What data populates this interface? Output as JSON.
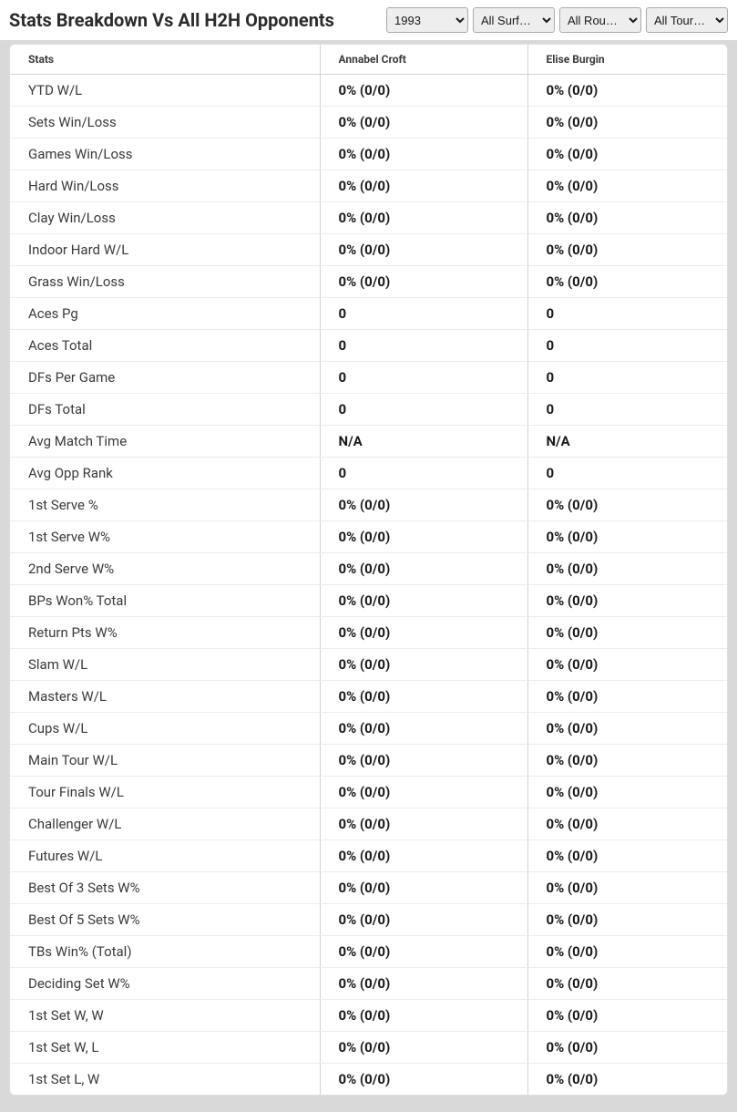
{
  "header": {
    "title": "Stats Breakdown Vs All H2H Opponents",
    "filters": {
      "year": "1993",
      "surface": "All Surf…",
      "round": "All Rou…",
      "tour": "All Tour…"
    }
  },
  "table": {
    "columns": [
      "Stats",
      "Annabel Croft",
      "Elise Burgin"
    ],
    "rows": [
      {
        "label": "YTD W/L",
        "p1": "0% (0/0)",
        "p2": "0% (0/0)"
      },
      {
        "label": "Sets Win/Loss",
        "p1": "0% (0/0)",
        "p2": "0% (0/0)"
      },
      {
        "label": "Games Win/Loss",
        "p1": "0% (0/0)",
        "p2": "0% (0/0)"
      },
      {
        "label": "Hard Win/Loss",
        "p1": "0% (0/0)",
        "p2": "0% (0/0)"
      },
      {
        "label": "Clay Win/Loss",
        "p1": "0% (0/0)",
        "p2": "0% (0/0)"
      },
      {
        "label": "Indoor Hard W/L",
        "p1": "0% (0/0)",
        "p2": "0% (0/0)"
      },
      {
        "label": "Grass Win/Loss",
        "p1": "0% (0/0)",
        "p2": "0% (0/0)"
      },
      {
        "label": "Aces Pg",
        "p1": "0",
        "p2": "0"
      },
      {
        "label": "Aces Total",
        "p1": "0",
        "p2": "0"
      },
      {
        "label": "DFs Per Game",
        "p1": "0",
        "p2": "0"
      },
      {
        "label": "DFs Total",
        "p1": "0",
        "p2": "0"
      },
      {
        "label": "Avg Match Time",
        "p1": "N/A",
        "p2": "N/A"
      },
      {
        "label": "Avg Opp Rank",
        "p1": "0",
        "p2": "0"
      },
      {
        "label": "1st Serve %",
        "p1": "0% (0/0)",
        "p2": "0% (0/0)"
      },
      {
        "label": "1st Serve W%",
        "p1": "0% (0/0)",
        "p2": "0% (0/0)"
      },
      {
        "label": "2nd Serve W%",
        "p1": "0% (0/0)",
        "p2": "0% (0/0)"
      },
      {
        "label": "BPs Won% Total",
        "p1": "0% (0/0)",
        "p2": "0% (0/0)"
      },
      {
        "label": "Return Pts W%",
        "p1": "0% (0/0)",
        "p2": "0% (0/0)"
      },
      {
        "label": "Slam W/L",
        "p1": "0% (0/0)",
        "p2": "0% (0/0)"
      },
      {
        "label": "Masters W/L",
        "p1": "0% (0/0)",
        "p2": "0% (0/0)"
      },
      {
        "label": "Cups W/L",
        "p1": "0% (0/0)",
        "p2": "0% (0/0)"
      },
      {
        "label": "Main Tour W/L",
        "p1": "0% (0/0)",
        "p2": "0% (0/0)"
      },
      {
        "label": "Tour Finals W/L",
        "p1": "0% (0/0)",
        "p2": "0% (0/0)"
      },
      {
        "label": "Challenger W/L",
        "p1": "0% (0/0)",
        "p2": "0% (0/0)"
      },
      {
        "label": "Futures W/L",
        "p1": "0% (0/0)",
        "p2": "0% (0/0)"
      },
      {
        "label": "Best Of 3 Sets W%",
        "p1": "0% (0/0)",
        "p2": "0% (0/0)"
      },
      {
        "label": "Best Of 5 Sets W%",
        "p1": "0% (0/0)",
        "p2": "0% (0/0)"
      },
      {
        "label": "TBs Win% (Total)",
        "p1": "0% (0/0)",
        "p2": "0% (0/0)"
      },
      {
        "label": "Deciding Set W%",
        "p1": "0% (0/0)",
        "p2": "0% (0/0)"
      },
      {
        "label": "1st Set W, W",
        "p1": "0% (0/0)",
        "p2": "0% (0/0)"
      },
      {
        "label": "1st Set W, L",
        "p1": "0% (0/0)",
        "p2": "0% (0/0)"
      },
      {
        "label": "1st Set L, W",
        "p1": "0% (0/0)",
        "p2": "0% (0/0)"
      }
    ]
  }
}
